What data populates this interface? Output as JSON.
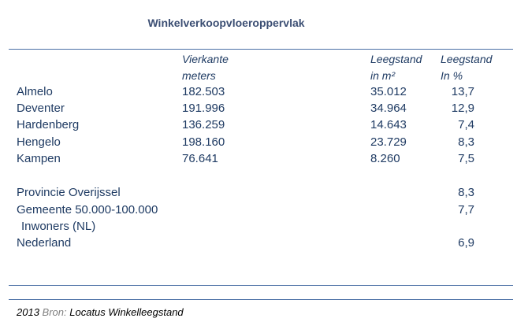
{
  "title": "Winkelverkoopvloeroppervlak",
  "headers": {
    "sqm_line1": "Vierkante",
    "sqm_line2": "meters",
    "vac_line1": "Leegstand",
    "vac_line2": "in m²",
    "pct_line1": "Leegstand",
    "pct_line2": "In %"
  },
  "cities": [
    {
      "name": "Almelo",
      "sqm": "182.503",
      "vacancy": "35.012",
      "pct": "13,7"
    },
    {
      "name": "Deventer",
      "sqm": "191.996",
      "vacancy": "34.964",
      "pct": "12,9"
    },
    {
      "name": "Hardenberg",
      "sqm": "136.259",
      "vacancy": "14.643",
      "pct": "7,4"
    },
    {
      "name": "Hengelo",
      "sqm": "198.160",
      "vacancy": "23.729",
      "pct": "8,3"
    },
    {
      "name": "Kampen",
      "sqm": "76.641",
      "vacancy": "8.260",
      "pct": "7,5"
    }
  ],
  "comparisons": [
    {
      "name": "Provincie Overijssel",
      "pct": "8,3"
    },
    {
      "name_line1": "Gemeente 50.000-100.000",
      "name_line2": "Inwoners (NL)",
      "pct": "7,7"
    },
    {
      "name": "Nederland",
      "pct": "6,9"
    }
  ],
  "footer": {
    "year": "2013",
    "source_label": "Bron:",
    "source": "Locatus Winkelleegstand"
  },
  "colors": {
    "text": "#1f3b63",
    "rule": "#4a6fa5"
  }
}
